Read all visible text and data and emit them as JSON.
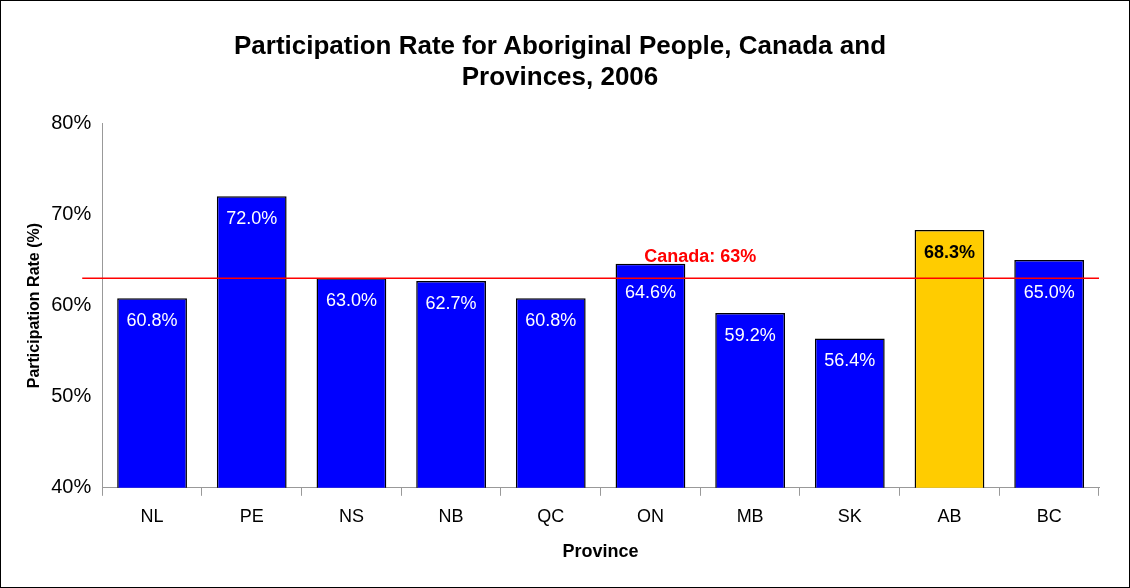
{
  "chart_data": {
    "type": "bar",
    "title": "Participation Rate for Aboriginal People, Canada and Provinces, 2006",
    "xlabel": "Province",
    "ylabel": "Participation Rate (%)",
    "categories": [
      "NL",
      "PE",
      "NS",
      "NB",
      "QC",
      "ON",
      "MB",
      "SK",
      "AB",
      "BC"
    ],
    "values": [
      60.8,
      72.0,
      63.0,
      62.7,
      60.8,
      64.6,
      59.2,
      56.4,
      68.3,
      65.0
    ],
    "colors": [
      "#0000ff",
      "#0000ff",
      "#0000ff",
      "#0000ff",
      "#0000ff",
      "#0000ff",
      "#0000ff",
      "#0000ff",
      "#ffcc00",
      "#0000ff"
    ],
    "value_labels": [
      "60.8%",
      "72.0%",
      "63.0%",
      "62.7%",
      "60.8%",
      "64.6%",
      "59.2%",
      "56.4%",
      "68.3%",
      "65.0%"
    ],
    "ylim": [
      40,
      80
    ],
    "yticks": [
      {
        "value": 40,
        "label": "40%"
      },
      {
        "value": 50,
        "label": "50%"
      },
      {
        "value": 60,
        "label": "60%"
      },
      {
        "value": 70,
        "label": "70%"
      },
      {
        "value": 80,
        "label": "80%"
      }
    ],
    "ref_lines": [
      {
        "axis": "y",
        "value": 63,
        "label": "Canada: 63%",
        "color": "#ff0000"
      }
    ],
    "grid": false,
    "legend": false
  }
}
